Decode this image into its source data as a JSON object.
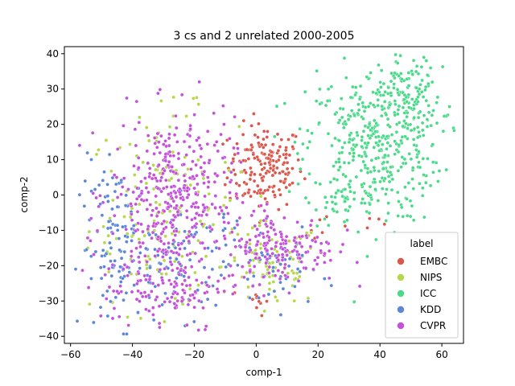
{
  "chart_data": {
    "type": "scatter",
    "title": "3 cs and 2 unrelated 2000-2005",
    "xlabel": "comp-1",
    "ylabel": "comp-2",
    "xlim": [
      -62,
      67
    ],
    "ylim": [
      -42,
      42
    ],
    "xticks": [
      -60,
      -40,
      -20,
      0,
      20,
      40,
      60
    ],
    "yticks": [
      -40,
      -30,
      -20,
      -10,
      0,
      10,
      20,
      30,
      40
    ],
    "grid": false,
    "legend": {
      "title": "label",
      "placement": "lower-right"
    },
    "series": [
      {
        "name": "EMBC",
        "color": "#d9584b",
        "clusters": [
          {
            "cx": 3,
            "cy": 8,
            "sx": 6,
            "sy": 6,
            "n": 170
          },
          {
            "cx": 0,
            "cy": -30,
            "sx": 2,
            "sy": 2,
            "n": 10
          },
          {
            "cx": 22,
            "cy": -8,
            "sx": 3,
            "sy": 2,
            "n": 6
          },
          {
            "cx": 38,
            "cy": -7,
            "sx": 2,
            "sy": 1,
            "n": 4
          }
        ]
      },
      {
        "name": "NIPS",
        "color": "#b5d84b",
        "clusters": [
          {
            "cx": -30,
            "cy": -5,
            "sx": 12,
            "sy": 14,
            "n": 160
          },
          {
            "cx": 5,
            "cy": -20,
            "sx": 8,
            "sy": 6,
            "n": 80
          }
        ]
      },
      {
        "name": "ICC",
        "color": "#4bd98a",
        "clusters": [
          {
            "cx": 38,
            "cy": 14,
            "sx": 11,
            "sy": 11,
            "n": 420
          },
          {
            "cx": 50,
            "cy": 28,
            "sx": 5,
            "sy": 6,
            "n": 110
          },
          {
            "cx": 28,
            "cy": -2,
            "sx": 4,
            "sy": 3,
            "n": 25
          }
        ]
      },
      {
        "name": "KDD",
        "color": "#5b86d9",
        "clusters": [
          {
            "cx": -45,
            "cy": -15,
            "sx": 6,
            "sy": 12,
            "n": 120
          },
          {
            "cx": -22,
            "cy": -18,
            "sx": 10,
            "sy": 8,
            "n": 90
          },
          {
            "cx": 8,
            "cy": -22,
            "sx": 6,
            "sy": 5,
            "n": 40
          }
        ]
      },
      {
        "name": "CVPR",
        "color": "#c451d9",
        "clusters": [
          {
            "cx": -27,
            "cy": 0,
            "sx": 10,
            "sy": 11,
            "n": 360
          },
          {
            "cx": -30,
            "cy": -25,
            "sx": 10,
            "sy": 7,
            "n": 140
          },
          {
            "cx": 8,
            "cy": -15,
            "sx": 9,
            "sy": 5,
            "n": 170
          }
        ]
      }
    ]
  }
}
